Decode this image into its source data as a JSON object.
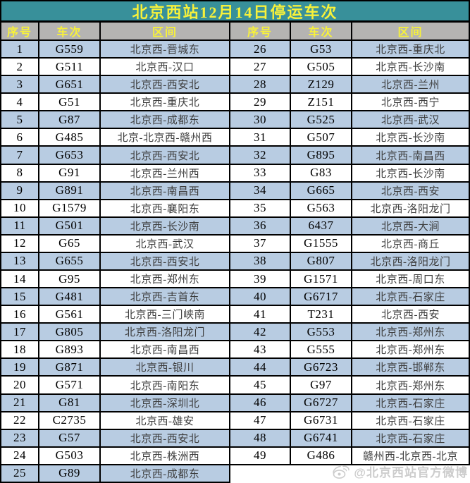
{
  "title": "北京西站12月14日停运车次",
  "columns": {
    "no": "序号",
    "train": "车次",
    "route": "区间"
  },
  "left_rows": [
    {
      "no": "1",
      "train": "G559",
      "route": "北京西-晋城东"
    },
    {
      "no": "2",
      "train": "G511",
      "route": "北京西-汉口"
    },
    {
      "no": "3",
      "train": "G651",
      "route": "北京西-西安北"
    },
    {
      "no": "4",
      "train": "G51",
      "route": "北京西-重庆北"
    },
    {
      "no": "5",
      "train": "G87",
      "route": "北京西-成都东"
    },
    {
      "no": "6",
      "train": "G485",
      "route": "北京-北京西-赣州西"
    },
    {
      "no": "7",
      "train": "G653",
      "route": "北京西-西安北"
    },
    {
      "no": "8",
      "train": "G91",
      "route": "北京西-兰州西"
    },
    {
      "no": "9",
      "train": "G891",
      "route": "北京西-南昌西"
    },
    {
      "no": "10",
      "train": "G1579",
      "route": "北京西-襄阳东"
    },
    {
      "no": "11",
      "train": "G501",
      "route": "北京西-长沙南"
    },
    {
      "no": "12",
      "train": "G65",
      "route": "北京西-武汉"
    },
    {
      "no": "13",
      "train": "G655",
      "route": "北京西-西安北"
    },
    {
      "no": "14",
      "train": "G95",
      "route": "北京西-郑州东"
    },
    {
      "no": "15",
      "train": "G481",
      "route": "北京西-吉首东"
    },
    {
      "no": "16",
      "train": "G561",
      "route": "北京西-三门峡南"
    },
    {
      "no": "17",
      "train": "G805",
      "route": "北京西-洛阳龙门"
    },
    {
      "no": "18",
      "train": "G893",
      "route": "北京西-南昌西"
    },
    {
      "no": "19",
      "train": "G871",
      "route": "北京西-银川"
    },
    {
      "no": "20",
      "train": "G571",
      "route": "北京西-南阳东"
    },
    {
      "no": "21",
      "train": "G81",
      "route": "北京西-深圳北"
    },
    {
      "no": "22",
      "train": "C2735",
      "route": "北京西-雄安"
    },
    {
      "no": "23",
      "train": "G57",
      "route": "北京西-西安北"
    },
    {
      "no": "24",
      "train": "G503",
      "route": "北京西-株洲西"
    },
    {
      "no": "25",
      "train": "G89",
      "route": "北京西-成都东"
    }
  ],
  "right_rows": [
    {
      "no": "26",
      "train": "G53",
      "route": "北京西-重庆北"
    },
    {
      "no": "27",
      "train": "G505",
      "route": "北京西-长沙南"
    },
    {
      "no": "28",
      "train": "Z129",
      "route": "北京西-兰州"
    },
    {
      "no": "29",
      "train": "Z151",
      "route": "北京西-西宁"
    },
    {
      "no": "30",
      "train": "G525",
      "route": "北京西-武汉"
    },
    {
      "no": "31",
      "train": "G507",
      "route": "北京西-长沙南"
    },
    {
      "no": "32",
      "train": "G895",
      "route": "北京西-南昌西"
    },
    {
      "no": "33",
      "train": "G83",
      "route": "北京西-长沙南"
    },
    {
      "no": "34",
      "train": "G665",
      "route": "北京西-西安"
    },
    {
      "no": "35",
      "train": "G563",
      "route": "北京西-洛阳龙门"
    },
    {
      "no": "36",
      "train": "6437",
      "route": "北京西-大涧"
    },
    {
      "no": "37",
      "train": "G1555",
      "route": "北京西-商丘"
    },
    {
      "no": "38",
      "train": "G807",
      "route": "北京西-洛阳龙门"
    },
    {
      "no": "39",
      "train": "G1571",
      "route": "北京西-周口东"
    },
    {
      "no": "40",
      "train": "G6717",
      "route": "北京西-石家庄"
    },
    {
      "no": "41",
      "train": "T231",
      "route": "北京西-西安"
    },
    {
      "no": "42",
      "train": "G553",
      "route": "北京西-郑州东"
    },
    {
      "no": "43",
      "train": "G555",
      "route": "北京西-郑州东"
    },
    {
      "no": "44",
      "train": "G6723",
      "route": "北京西-邯郸东"
    },
    {
      "no": "45",
      "train": "G97",
      "route": "北京西-郑州东"
    },
    {
      "no": "46",
      "train": "G6727",
      "route": "北京西-石家庄"
    },
    {
      "no": "47",
      "train": "G6731",
      "route": "北京西-石家庄"
    },
    {
      "no": "48",
      "train": "G6741",
      "route": "北京西-石家庄"
    },
    {
      "no": "49",
      "train": "G486",
      "route": "赣州西-北京西-北京"
    }
  ],
  "watermark": {
    "text": "@北京西站官方微博",
    "icon": "weibo-icon"
  },
  "colors": {
    "title_bg": "#38909a",
    "title_text": "#f7f13b",
    "header_bg": "#b5b4b2",
    "header_text": "#f7f13b",
    "row_alt_bg": "#b8cce2",
    "row_bg": "#ffffff",
    "border": "#000000",
    "watermark_text": "#c4c4c4"
  }
}
